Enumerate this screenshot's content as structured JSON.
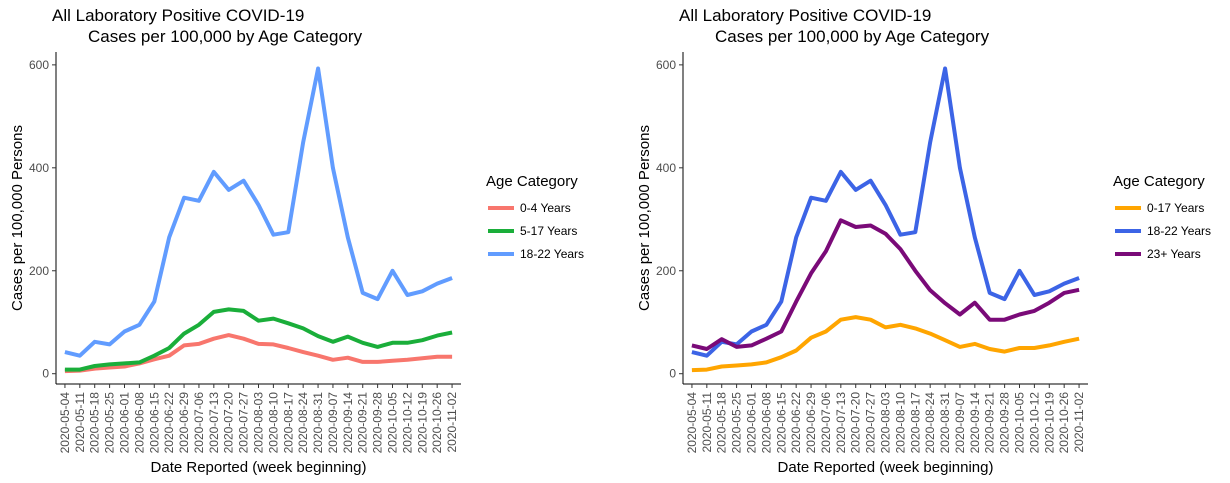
{
  "chart_data": [
    {
      "type": "line",
      "title": "All Laboratory Positive COVID-19",
      "subtitle": "Cases per 100,000 by Age Category",
      "xlabel": "Date Reported (week beginning)",
      "ylabel": "Cases per 100,000 Persons",
      "ylim": [
        -20,
        625
      ],
      "yticks": [
        0,
        200,
        400,
        600
      ],
      "legend_title": "Age Category",
      "legend_position": "right",
      "grid": false,
      "x": [
        "2020-05-04",
        "2020-05-11",
        "2020-05-18",
        "2020-05-25",
        "2020-06-01",
        "2020-06-08",
        "2020-06-15",
        "2020-06-22",
        "2020-06-29",
        "2020-07-06",
        "2020-07-13",
        "2020-07-20",
        "2020-07-27",
        "2020-08-03",
        "2020-08-10",
        "2020-08-17",
        "2020-08-24",
        "2020-08-31",
        "2020-09-07",
        "2020-09-14",
        "2020-09-21",
        "2020-09-28",
        "2020-10-05",
        "2020-10-12",
        "2020-10-19",
        "2020-10-26",
        "2020-11-02"
      ],
      "series": [
        {
          "name": "0-4 Years",
          "color": "#f8766d",
          "values": [
            5,
            6,
            10,
            12,
            14,
            20,
            28,
            35,
            55,
            58,
            68,
            75,
            68,
            58,
            57,
            50,
            42,
            35,
            27,
            31,
            23,
            23,
            25,
            27,
            30,
            33,
            33
          ]
        },
        {
          "name": "5-17 Years",
          "color": "#1aae3a",
          "values": [
            8,
            8,
            15,
            18,
            20,
            22,
            35,
            50,
            78,
            95,
            120,
            125,
            122,
            103,
            107,
            98,
            88,
            73,
            62,
            72,
            60,
            52,
            60,
            60,
            65,
            74,
            80
          ]
        },
        {
          "name": "18-22 Years",
          "color": "#619cff",
          "values": [
            42,
            35,
            62,
            57,
            82,
            95,
            140,
            265,
            342,
            336,
            392,
            357,
            375,
            328,
            270,
            275,
            450,
            593,
            400,
            265,
            157,
            145,
            200,
            153,
            160,
            175,
            186
          ]
        }
      ]
    },
    {
      "type": "line",
      "title": "All Laboratory Positive COVID-19",
      "subtitle": "Cases per 100,000 by Age Category",
      "xlabel": "Date Reported (week beginning)",
      "ylabel": "Cases per 100,000 Persons",
      "ylim": [
        -20,
        625
      ],
      "yticks": [
        0,
        200,
        400,
        600
      ],
      "legend_title": "Age Category",
      "legend_position": "right",
      "grid": false,
      "x": [
        "2020-05-04",
        "2020-05-11",
        "2020-05-18",
        "2020-05-25",
        "2020-06-01",
        "2020-06-08",
        "2020-06-15",
        "2020-06-22",
        "2020-06-29",
        "2020-07-06",
        "2020-07-13",
        "2020-07-20",
        "2020-07-27",
        "2020-08-03",
        "2020-08-10",
        "2020-08-17",
        "2020-08-24",
        "2020-08-31",
        "2020-09-07",
        "2020-09-14",
        "2020-09-21",
        "2020-09-28",
        "2020-10-05",
        "2020-10-12",
        "2020-10-19",
        "2020-10-26",
        "2020-11-02"
      ],
      "series": [
        {
          "name": "0-17 Years",
          "color": "#ffa500",
          "values": [
            7,
            8,
            14,
            16,
            18,
            22,
            32,
            45,
            70,
            82,
            105,
            110,
            105,
            90,
            95,
            88,
            78,
            65,
            52,
            58,
            48,
            43,
            50,
            50,
            55,
            62,
            68
          ]
        },
        {
          "name": "18-22 Years",
          "color": "#3c64e6",
          "values": [
            42,
            35,
            62,
            57,
            82,
            95,
            140,
            265,
            342,
            336,
            392,
            357,
            375,
            328,
            270,
            275,
            450,
            593,
            400,
            265,
            157,
            145,
            200,
            153,
            160,
            175,
            186
          ]
        },
        {
          "name": "23+ Years",
          "color": "#7a0a78",
          "values": [
            55,
            48,
            67,
            52,
            55,
            68,
            82,
            140,
            195,
            238,
            298,
            285,
            288,
            272,
            242,
            200,
            162,
            137,
            115,
            138,
            105,
            105,
            115,
            122,
            138,
            157,
            163
          ]
        }
      ]
    }
  ]
}
